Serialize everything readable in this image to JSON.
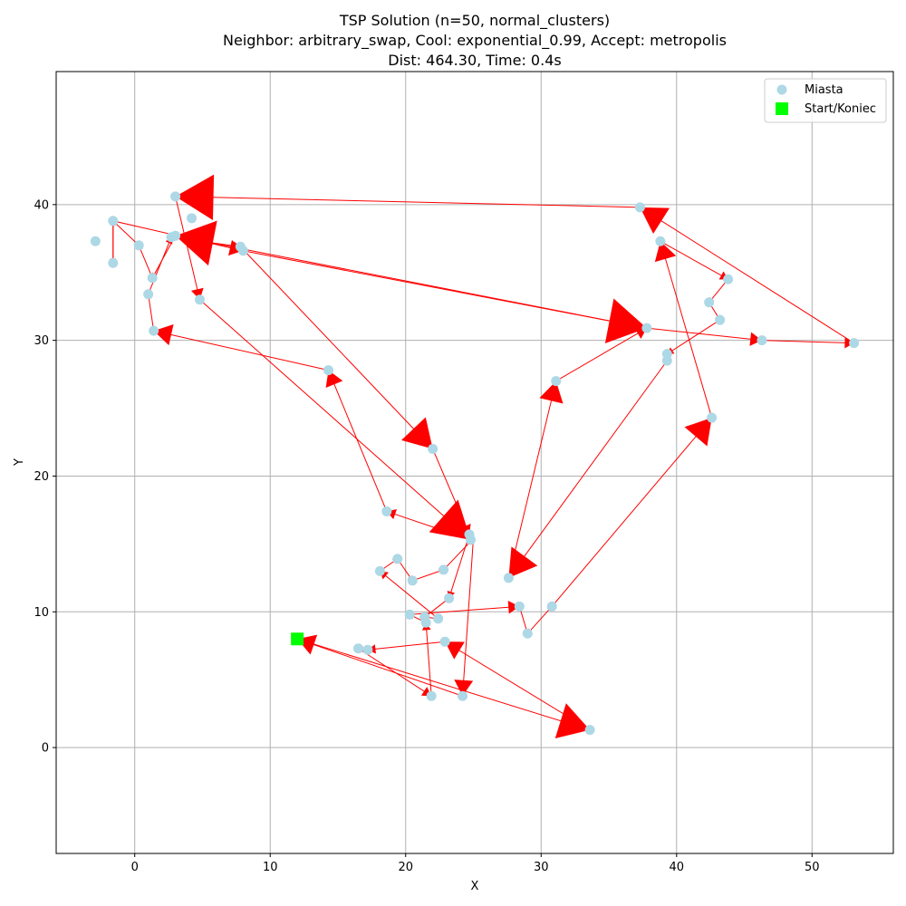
{
  "chart_data": {
    "type": "scatter",
    "title_lines": [
      "TSP Solution (n=50, normal_clusters)",
      "Neighbor: arbitrary_swap, Cool: exponential_0.99, Accept: metropolis",
      "Dist: 464.30, Time: 0.4s"
    ],
    "xlabel": "X",
    "ylabel": "Y",
    "xlim": [
      -5.8,
      56
    ],
    "ylim": [
      -7.8,
      49.8
    ],
    "xticks": [
      0,
      10,
      20,
      30,
      40,
      50
    ],
    "yticks": [
      0,
      10,
      20,
      30,
      40
    ],
    "grid": true,
    "legend": {
      "placement": "top-right",
      "entries": [
        {
          "label": "Miasta",
          "marker": "circle",
          "color": "#add8e6"
        },
        {
          "label": "Start/Koniec",
          "marker": "square",
          "color": "#00ff00"
        }
      ]
    },
    "colors": {
      "city": "#add8e6",
      "start": "#00ff00",
      "route": "#ff0000",
      "grid": "#b0b0b0"
    },
    "start": [
      12.0,
      8.0
    ],
    "route": [
      [
        12.0,
        8.0
      ],
      [
        33.6,
        1.3
      ],
      [
        22.9,
        7.8
      ],
      [
        17.2,
        7.2
      ],
      [
        16.5,
        7.3
      ],
      [
        21.9,
        3.8
      ],
      [
        21.5,
        9.2
      ],
      [
        20.3,
        9.8
      ],
      [
        28.4,
        10.4
      ],
      [
        29.0,
        8.4
      ],
      [
        30.8,
        10.4
      ],
      [
        42.6,
        24.3
      ],
      [
        38.8,
        37.3
      ],
      [
        43.8,
        34.5
      ],
      [
        42.4,
        32.8
      ],
      [
        43.2,
        31.5
      ],
      [
        39.3,
        29.0
      ],
      [
        39.3,
        28.5
      ],
      [
        27.6,
        12.5
      ],
      [
        31.1,
        27.0
      ],
      [
        37.8,
        30.9
      ],
      [
        3.0,
        37.7
      ],
      [
        1.3,
        34.6
      ],
      [
        0.3,
        37.0
      ],
      [
        -1.6,
        38.8
      ],
      [
        -1.6,
        35.7
      ],
      [
        -1.6,
        38.8
      ],
      [
        8.0,
        36.6
      ],
      [
        37.8,
        30.9
      ],
      [
        46.3,
        30.0
      ],
      [
        53.1,
        29.8
      ],
      [
        37.3,
        39.8
      ],
      [
        3.0,
        40.6
      ],
      [
        4.8,
        33.0
      ],
      [
        24.8,
        15.3
      ],
      [
        18.6,
        17.4
      ],
      [
        14.3,
        27.8
      ],
      [
        1.4,
        30.7
      ],
      [
        1.0,
        33.4
      ],
      [
        2.7,
        37.6
      ],
      [
        7.8,
        36.9
      ],
      [
        22.0,
        22.0
      ],
      [
        24.7,
        15.7
      ],
      [
        23.2,
        11.0
      ],
      [
        21.4,
        9.6
      ],
      [
        22.4,
        9.5
      ],
      [
        18.1,
        13.0
      ],
      [
        19.4,
        13.9
      ],
      [
        20.5,
        12.3
      ],
      [
        22.8,
        13.1
      ],
      [
        25.0,
        15.4
      ],
      [
        24.2,
        3.8
      ],
      [
        12.0,
        8.0
      ]
    ],
    "cities": [
      [
        33.6,
        1.3
      ],
      [
        22.9,
        7.8
      ],
      [
        17.2,
        7.2
      ],
      [
        16.5,
        7.3
      ],
      [
        21.9,
        3.8
      ],
      [
        24.2,
        3.8
      ],
      [
        21.5,
        9.2
      ],
      [
        20.3,
        9.8
      ],
      [
        21.4,
        9.6
      ],
      [
        22.4,
        9.5
      ],
      [
        28.4,
        10.4
      ],
      [
        29.0,
        8.4
      ],
      [
        30.8,
        10.4
      ],
      [
        42.6,
        24.3
      ],
      [
        38.8,
        37.3
      ],
      [
        43.8,
        34.5
      ],
      [
        42.4,
        32.8
      ],
      [
        43.2,
        31.5
      ],
      [
        39.3,
        29.0
      ],
      [
        39.3,
        28.5
      ],
      [
        27.6,
        12.5
      ],
      [
        31.1,
        27.0
      ],
      [
        37.8,
        30.9
      ],
      [
        46.3,
        30.0
      ],
      [
        53.1,
        29.8
      ],
      [
        37.3,
        39.8
      ],
      [
        3.0,
        40.6
      ],
      [
        4.2,
        39.0
      ],
      [
        4.8,
        33.0
      ],
      [
        24.8,
        15.3
      ],
      [
        24.7,
        15.7
      ],
      [
        18.6,
        17.4
      ],
      [
        14.3,
        27.8
      ],
      [
        1.4,
        30.7
      ],
      [
        1.0,
        33.4
      ],
      [
        1.3,
        34.6
      ],
      [
        2.7,
        37.6
      ],
      [
        3.0,
        37.7
      ],
      [
        0.3,
        37.0
      ],
      [
        -1.6,
        38.8
      ],
      [
        -1.6,
        35.7
      ],
      [
        -2.9,
        37.3
      ],
      [
        7.8,
        36.9
      ],
      [
        8.0,
        36.6
      ],
      [
        22.0,
        22.0
      ],
      [
        23.2,
        11.0
      ],
      [
        18.1,
        13.0
      ],
      [
        19.4,
        13.9
      ],
      [
        20.5,
        12.3
      ],
      [
        22.8,
        13.1
      ]
    ]
  }
}
